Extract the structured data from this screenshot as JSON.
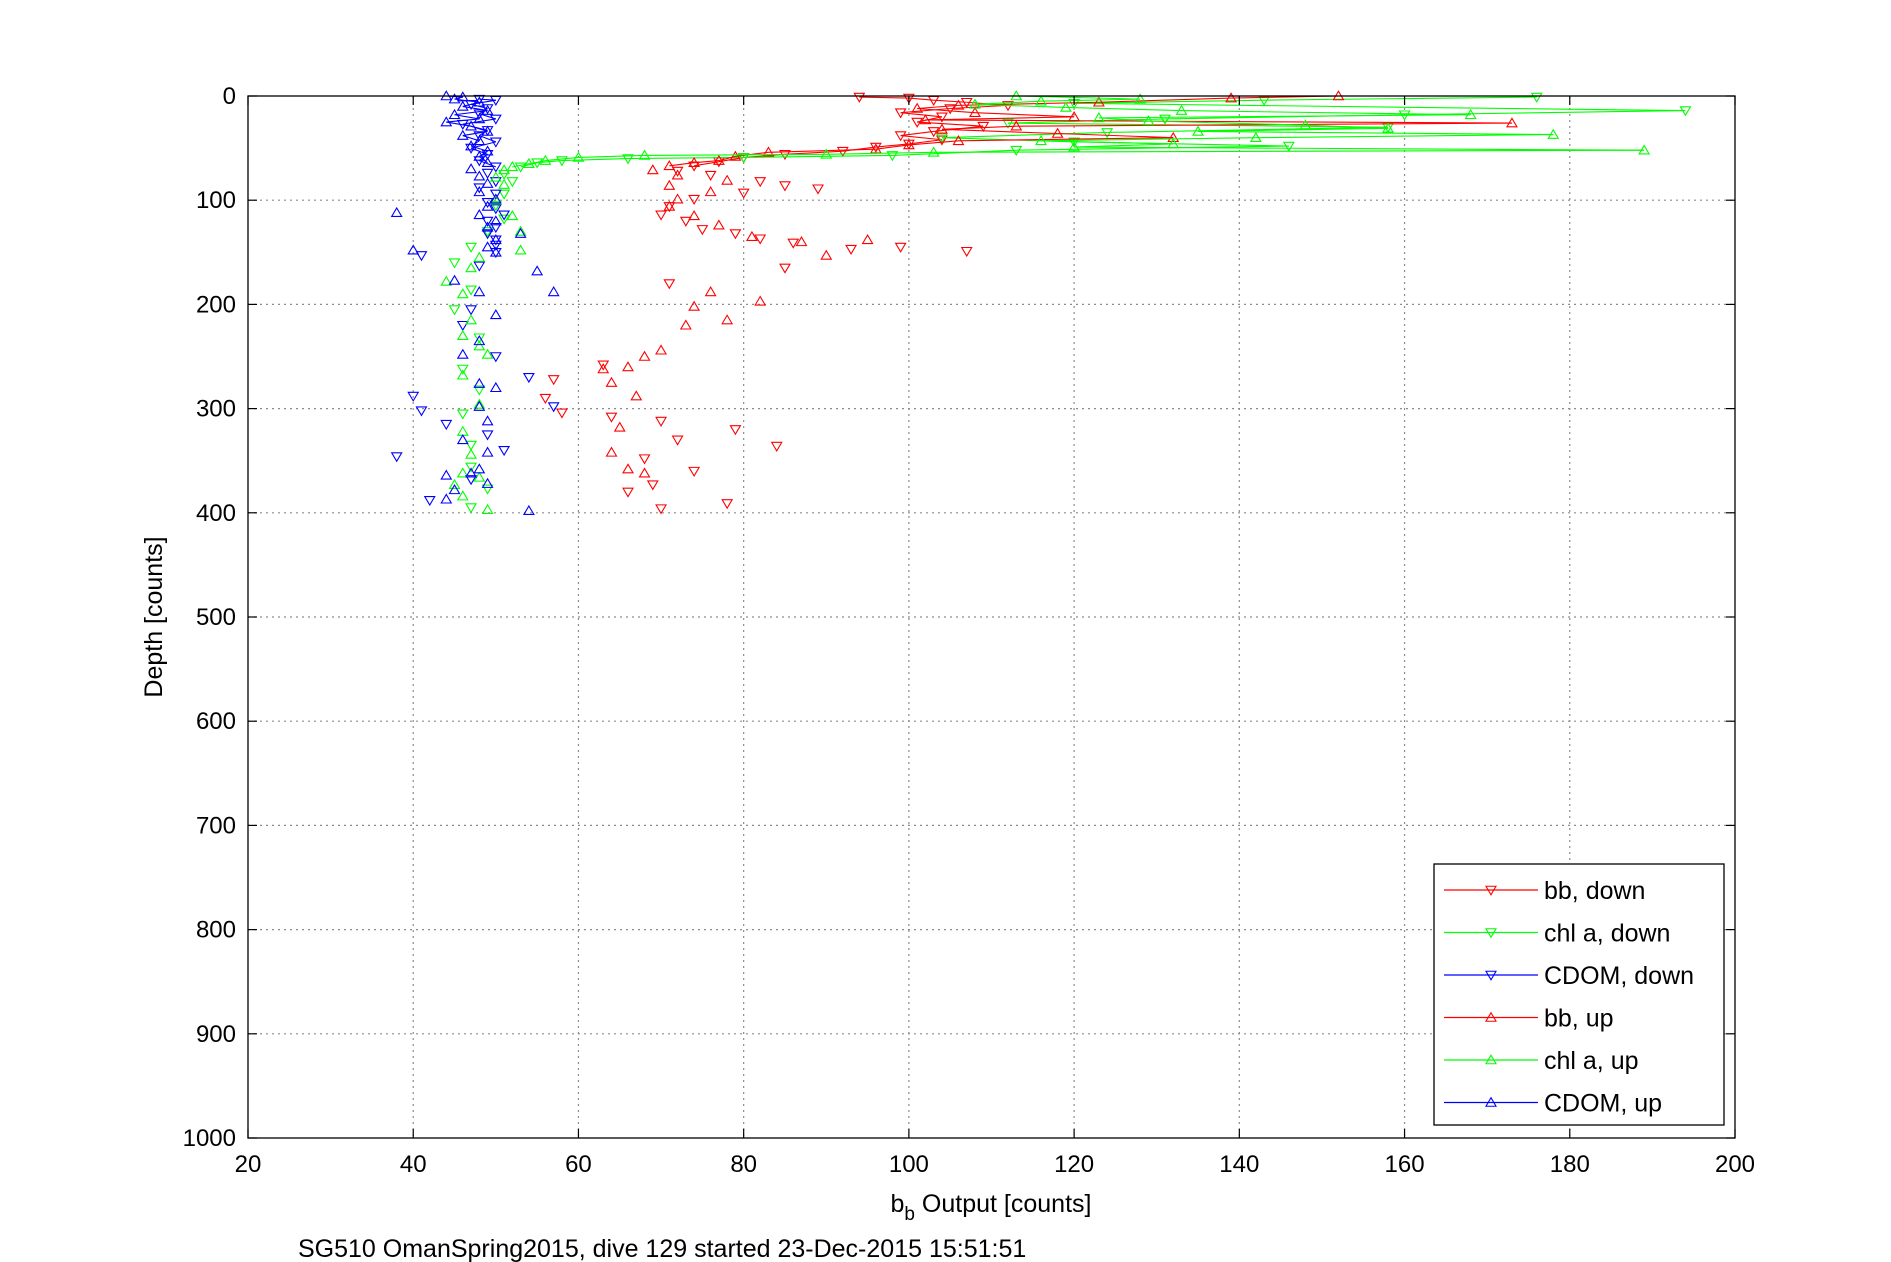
{
  "chart_data": {
    "type": "scatter",
    "title": "",
    "xlabel": {
      "main": "b",
      "subscript": "b",
      "rest": " Output [counts]"
    },
    "ylabel": "Depth [counts]",
    "caption": "SG510 OmanSpring2015, dive 129 started 23-Dec-2015 15:51:51",
    "xlim": [
      20,
      200
    ],
    "ylim": [
      1000,
      0
    ],
    "y_reversed": true,
    "xticks": [
      "20",
      "40",
      "60",
      "80",
      "100",
      "120",
      "140",
      "160",
      "180",
      "200"
    ],
    "yticks": [
      "0",
      "100",
      "200",
      "300",
      "400",
      "500",
      "600",
      "700",
      "800",
      "900",
      "1000"
    ],
    "grid": true,
    "legend_position": "bottom-right",
    "series": [
      {
        "name": "bb, down",
        "color": "#ff0000",
        "marker": "triangle-down",
        "points": [
          [
            94,
            1
          ],
          [
            100,
            2
          ],
          [
            103,
            4
          ],
          [
            107,
            6
          ],
          [
            112,
            9
          ],
          [
            105,
            12
          ],
          [
            99,
            16
          ],
          [
            104,
            20
          ],
          [
            101,
            25
          ],
          [
            109,
            29
          ],
          [
            103,
            34
          ],
          [
            99,
            38
          ],
          [
            104,
            42
          ],
          [
            100,
            46
          ],
          [
            96,
            49
          ],
          [
            92,
            53
          ],
          [
            85,
            56
          ],
          [
            80,
            59
          ],
          [
            77,
            63
          ],
          [
            74,
            67
          ],
          [
            72,
            72
          ],
          [
            76,
            76
          ],
          [
            82,
            82
          ],
          [
            85,
            86
          ],
          [
            89,
            89
          ],
          [
            80,
            93
          ],
          [
            74,
            99
          ],
          [
            71,
            106
          ],
          [
            70,
            114
          ],
          [
            73,
            120
          ],
          [
            75,
            128
          ],
          [
            79,
            132
          ],
          [
            82,
            137
          ],
          [
            86,
            141
          ],
          [
            93,
            147
          ],
          [
            99,
            145
          ],
          [
            107,
            149
          ],
          [
            85,
            165
          ],
          [
            71,
            180
          ],
          [
            63,
            258
          ],
          [
            57,
            272
          ],
          [
            56,
            290
          ],
          [
            58,
            304
          ],
          [
            64,
            308
          ],
          [
            70,
            312
          ],
          [
            72,
            330
          ],
          [
            79,
            320
          ],
          [
            84,
            336
          ],
          [
            68,
            348
          ],
          [
            74,
            360
          ],
          [
            69,
            373
          ],
          [
            66,
            380
          ],
          [
            70,
            396
          ],
          [
            78,
            391
          ]
        ]
      },
      {
        "name": "chl a, down",
        "color": "#00ff00",
        "marker": "triangle-down",
        "points": [
          [
            176,
            1
          ],
          [
            143,
            4
          ],
          [
            120,
            7
          ],
          [
            194,
            14
          ],
          [
            160,
            18
          ],
          [
            131,
            22
          ],
          [
            112,
            26
          ],
          [
            158,
            30
          ],
          [
            124,
            35
          ],
          [
            104,
            40
          ],
          [
            120,
            44
          ],
          [
            146,
            48
          ],
          [
            113,
            52
          ],
          [
            98,
            57
          ],
          [
            80,
            59
          ],
          [
            66,
            60
          ],
          [
            58,
            62
          ],
          [
            55,
            64
          ],
          [
            53,
            68
          ],
          [
            51,
            75
          ],
          [
            52,
            82
          ],
          [
            51,
            94
          ],
          [
            50,
            105
          ],
          [
            51,
            118
          ],
          [
            49,
            130
          ],
          [
            47,
            145
          ],
          [
            45,
            160
          ],
          [
            47,
            186
          ],
          [
            45,
            205
          ],
          [
            48,
            232
          ],
          [
            46,
            262
          ],
          [
            48,
            282
          ],
          [
            46,
            305
          ],
          [
            47,
            335
          ],
          [
            47,
            356
          ],
          [
            49,
            377
          ],
          [
            47,
            395
          ]
        ]
      },
      {
        "name": "CDOM, down",
        "color": "#0000ff",
        "marker": "triangle-down",
        "points": [
          [
            48,
            3
          ],
          [
            50,
            4
          ],
          [
            47,
            8
          ],
          [
            49,
            12
          ],
          [
            48,
            17
          ],
          [
            50,
            22
          ],
          [
            46,
            27
          ],
          [
            49,
            33
          ],
          [
            48,
            38
          ],
          [
            50,
            44
          ],
          [
            47,
            50
          ],
          [
            49,
            56
          ],
          [
            48,
            62
          ],
          [
            50,
            68
          ],
          [
            49,
            74
          ],
          [
            50,
            82
          ],
          [
            48,
            88
          ],
          [
            50,
            94
          ],
          [
            49,
            102
          ],
          [
            50,
            108
          ],
          [
            51,
            114
          ],
          [
            49,
            120
          ],
          [
            50,
            126
          ],
          [
            49,
            132
          ],
          [
            50,
            138
          ],
          [
            50,
            143
          ],
          [
            50,
            150
          ],
          [
            41,
            153
          ],
          [
            48,
            163
          ],
          [
            47,
            205
          ],
          [
            46,
            220
          ],
          [
            50,
            250
          ],
          [
            54,
            270
          ],
          [
            57,
            298
          ],
          [
            44,
            315
          ],
          [
            49,
            325
          ],
          [
            51,
            340
          ],
          [
            47,
            368
          ],
          [
            42,
            388
          ],
          [
            40,
            288
          ],
          [
            38,
            346
          ],
          [
            41,
            302
          ]
        ]
      },
      {
        "name": "bb, up",
        "color": "#ff0000",
        "marker": "triangle-up",
        "points": [
          [
            152,
            0
          ],
          [
            139,
            2
          ],
          [
            123,
            6
          ],
          [
            106,
            9
          ],
          [
            101,
            12
          ],
          [
            108,
            16
          ],
          [
            120,
            20
          ],
          [
            102,
            23
          ],
          [
            173,
            26
          ],
          [
            113,
            29
          ],
          [
            104,
            32
          ],
          [
            118,
            36
          ],
          [
            132,
            40
          ],
          [
            106,
            43
          ],
          [
            100,
            47
          ],
          [
            96,
            51
          ],
          [
            83,
            54
          ],
          [
            79,
            58
          ],
          [
            77,
            62
          ],
          [
            74,
            64
          ],
          [
            71,
            67
          ],
          [
            69,
            71
          ],
          [
            72,
            76
          ],
          [
            78,
            81
          ],
          [
            71,
            86
          ],
          [
            76,
            92
          ],
          [
            72,
            99
          ],
          [
            71,
            106
          ],
          [
            74,
            115
          ],
          [
            77,
            124
          ],
          [
            81,
            135
          ],
          [
            87,
            140
          ],
          [
            95,
            138
          ],
          [
            90,
            153
          ],
          [
            76,
            188
          ],
          [
            82,
            197
          ],
          [
            74,
            202
          ],
          [
            73,
            220
          ],
          [
            78,
            215
          ],
          [
            70,
            244
          ],
          [
            68,
            250
          ],
          [
            66,
            260
          ],
          [
            63,
            262
          ],
          [
            64,
            275
          ],
          [
            67,
            288
          ],
          [
            65,
            318
          ],
          [
            64,
            342
          ],
          [
            68,
            362
          ],
          [
            66,
            358
          ]
        ]
      },
      {
        "name": "chl a, up",
        "color": "#00ff00",
        "marker": "triangle-up",
        "points": [
          [
            113,
            0
          ],
          [
            128,
            3
          ],
          [
            116,
            5
          ],
          [
            108,
            8
          ],
          [
            119,
            11
          ],
          [
            133,
            14
          ],
          [
            168,
            18
          ],
          [
            123,
            21
          ],
          [
            129,
            24
          ],
          [
            148,
            28
          ],
          [
            158,
            31
          ],
          [
            135,
            34
          ],
          [
            178,
            37
          ],
          [
            142,
            40
          ],
          [
            116,
            43
          ],
          [
            132,
            46
          ],
          [
            120,
            49
          ],
          [
            189,
            52
          ],
          [
            103,
            54
          ],
          [
            90,
            56
          ],
          [
            68,
            57
          ],
          [
            60,
            59
          ],
          [
            56,
            62
          ],
          [
            54,
            65
          ],
          [
            52,
            68
          ],
          [
            51,
            71
          ],
          [
            50,
            78
          ],
          [
            51,
            85
          ],
          [
            50,
            100
          ],
          [
            52,
            115
          ],
          [
            53,
            130
          ],
          [
            53,
            148
          ],
          [
            48,
            155
          ],
          [
            47,
            165
          ],
          [
            44,
            178
          ],
          [
            46,
            190
          ],
          [
            47,
            215
          ],
          [
            46,
            230
          ],
          [
            48,
            240
          ],
          [
            49,
            248
          ],
          [
            46,
            268
          ],
          [
            48,
            296
          ],
          [
            46,
            322
          ],
          [
            47,
            344
          ],
          [
            46,
            362
          ],
          [
            45,
            373
          ],
          [
            46,
            384
          ],
          [
            48,
            366
          ],
          [
            49,
            397
          ]
        ]
      },
      {
        "name": "CDOM, up",
        "color": "#0000ff",
        "marker": "triangle-up",
        "points": [
          [
            44,
            0
          ],
          [
            46,
            1
          ],
          [
            45,
            3
          ],
          [
            48,
            6
          ],
          [
            46,
            10
          ],
          [
            49,
            14
          ],
          [
            45,
            18
          ],
          [
            48,
            22
          ],
          [
            44,
            25
          ],
          [
            47,
            29
          ],
          [
            49,
            34
          ],
          [
            46,
            38
          ],
          [
            48,
            43
          ],
          [
            47,
            48
          ],
          [
            49,
            53
          ],
          [
            48,
            58
          ],
          [
            49,
            64
          ],
          [
            47,
            70
          ],
          [
            48,
            77
          ],
          [
            49,
            84
          ],
          [
            48,
            92
          ],
          [
            50,
            99
          ],
          [
            49,
            106
          ],
          [
            48,
            114
          ],
          [
            50,
            120
          ],
          [
            49,
            126
          ],
          [
            53,
            132
          ],
          [
            50,
            138
          ],
          [
            49,
            145
          ],
          [
            50,
            150
          ],
          [
            55,
            168
          ],
          [
            57,
            188
          ],
          [
            45,
            177
          ],
          [
            48,
            188
          ],
          [
            50,
            210
          ],
          [
            48,
            235
          ],
          [
            46,
            248
          ],
          [
            48,
            276
          ],
          [
            50,
            280
          ],
          [
            48,
            298
          ],
          [
            49,
            312
          ],
          [
            46,
            330
          ],
          [
            49,
            342
          ],
          [
            48,
            358
          ],
          [
            47,
            362
          ],
          [
            44,
            364
          ],
          [
            49,
            372
          ],
          [
            45,
            378
          ],
          [
            44,
            387
          ],
          [
            54,
            398
          ],
          [
            38,
            112
          ],
          [
            40,
            148
          ]
        ]
      }
    ]
  }
}
